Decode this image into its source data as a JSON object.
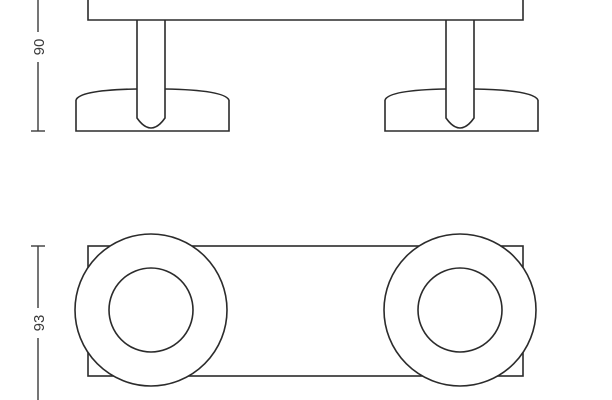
{
  "drawing": {
    "side_view": {
      "dimension_label": "90"
    },
    "top_view": {
      "dimension_label": "93"
    },
    "line_color": "#2b2b2b"
  }
}
